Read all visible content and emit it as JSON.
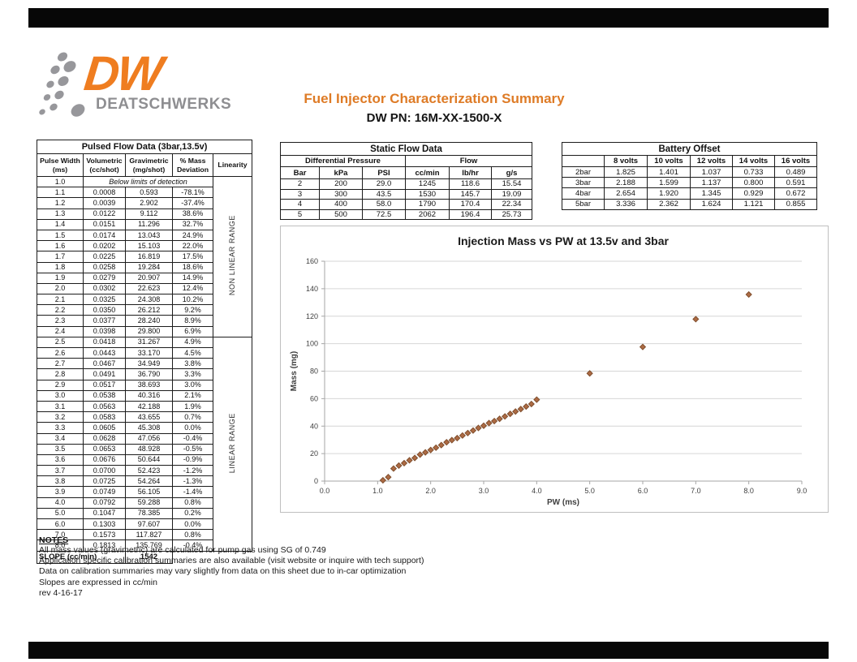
{
  "header": {
    "logo_dw": "DW",
    "logo_brand": "DEATSCHWERKS",
    "title": "Fuel Injector Characterization Summary",
    "subtitle": "DW PN: 16M-XX-1500-X"
  },
  "pulsed_flow": {
    "title": "Pulsed Flow Data (3bar,13.5v)",
    "columns": [
      [
        "Pulse Width",
        "(ms)"
      ],
      [
        "Volumetric",
        "(cc/shot)"
      ],
      [
        "Gravimetric",
        "(mg/shot)"
      ],
      [
        "% Mass",
        "Deviation"
      ]
    ],
    "linearity_header": "Linearity",
    "below_limits": {
      "pw": "1.0",
      "text": "Below limits of detection"
    },
    "non_linear_label": "NON LINEAR RANGE",
    "linear_label": "LINEAR RANGE",
    "linear_range_start": "2.5",
    "rows": [
      [
        "1.1",
        "0.0008",
        "0.593",
        "-78.1%"
      ],
      [
        "1.2",
        "0.0039",
        "2.902",
        "-37.4%"
      ],
      [
        "1.3",
        "0.0122",
        "9.112",
        "38.6%"
      ],
      [
        "1.4",
        "0.0151",
        "11.296",
        "32.7%"
      ],
      [
        "1.5",
        "0.0174",
        "13.043",
        "24.9%"
      ],
      [
        "1.6",
        "0.0202",
        "15.103",
        "22.0%"
      ],
      [
        "1.7",
        "0.0225",
        "16.819",
        "17.5%"
      ],
      [
        "1.8",
        "0.0258",
        "19.284",
        "18.6%"
      ],
      [
        "1.9",
        "0.0279",
        "20.907",
        "14.9%"
      ],
      [
        "2.0",
        "0.0302",
        "22.623",
        "12.4%"
      ],
      [
        "2.1",
        "0.0325",
        "24.308",
        "10.2%"
      ],
      [
        "2.2",
        "0.0350",
        "26.212",
        "9.2%"
      ],
      [
        "2.3",
        "0.0377",
        "28.240",
        "8.9%"
      ],
      [
        "2.4",
        "0.0398",
        "29.800",
        "6.9%"
      ],
      [
        "2.5",
        "0.0418",
        "31.267",
        "4.9%"
      ],
      [
        "2.6",
        "0.0443",
        "33.170",
        "4.5%"
      ],
      [
        "2.7",
        "0.0467",
        "34.949",
        "3.8%"
      ],
      [
        "2.8",
        "0.0491",
        "36.790",
        "3.3%"
      ],
      [
        "2.9",
        "0.0517",
        "38.693",
        "3.0%"
      ],
      [
        "3.0",
        "0.0538",
        "40.316",
        "2.1%"
      ],
      [
        "3.1",
        "0.0563",
        "42.188",
        "1.9%"
      ],
      [
        "3.2",
        "0.0583",
        "43.655",
        "0.7%"
      ],
      [
        "3.3",
        "0.0605",
        "45.308",
        "0.0%"
      ],
      [
        "3.4",
        "0.0628",
        "47.056",
        "-0.4%"
      ],
      [
        "3.5",
        "0.0653",
        "48.928",
        "-0.5%"
      ],
      [
        "3.6",
        "0.0676",
        "50.644",
        "-0.9%"
      ],
      [
        "3.7",
        "0.0700",
        "52.423",
        "-1.2%"
      ],
      [
        "3.8",
        "0.0725",
        "54.264",
        "-1.3%"
      ],
      [
        "3.9",
        "0.0749",
        "56.105",
        "-1.4%"
      ],
      [
        "4.0",
        "0.0792",
        "59.288",
        "0.8%"
      ],
      [
        "5.0",
        "0.1047",
        "78.385",
        "0.2%"
      ],
      [
        "6.0",
        "0.1303",
        "97.607",
        "0.0%"
      ],
      [
        "7.0",
        "0.1573",
        "117.827",
        "0.8%"
      ],
      [
        "8.0",
        "0.1813",
        "135.769",
        "-0.4%"
      ]
    ],
    "slope_label": "SLOPE (cc/min)",
    "slope_value": "1542"
  },
  "static_flow": {
    "title": "Static Flow Data",
    "group_headers": [
      "Differential Pressure",
      "Flow"
    ],
    "columns": [
      "Bar",
      "kPa",
      "PSI",
      "cc/min",
      "lb/hr",
      "g/s"
    ],
    "rows": [
      [
        "2",
        "200",
        "29.0",
        "1245",
        "118.6",
        "15.54"
      ],
      [
        "3",
        "300",
        "43.5",
        "1530",
        "145.7",
        "19.09"
      ],
      [
        "4",
        "400",
        "58.0",
        "1790",
        "170.4",
        "22.34"
      ],
      [
        "5",
        "500",
        "72.5",
        "2062",
        "196.4",
        "25.73"
      ]
    ]
  },
  "battery_offset": {
    "title": "Battery Offset",
    "columns": [
      "",
      "8 volts",
      "10 volts",
      "12 volts",
      "14 volts",
      "16 volts"
    ],
    "rows": [
      [
        "2bar",
        "1.825",
        "1.401",
        "1.037",
        "0.733",
        "0.489"
      ],
      [
        "3bar",
        "2.188",
        "1.599",
        "1.137",
        "0.800",
        "0.591"
      ],
      [
        "4bar",
        "2.654",
        "1.920",
        "1.345",
        "0.929",
        "0.672"
      ],
      [
        "5bar",
        "3.336",
        "2.362",
        "1.624",
        "1.121",
        "0.855"
      ]
    ]
  },
  "notes": {
    "title": "NOTES",
    "lines": [
      "All mass values (gravimetric) are calculated for pump gas using SG of 0.749",
      "Application specific calibration summaries are also available (visit website or inquire with tech support)",
      "Data on calibration summaries may vary slightly from data on this sheet due to in-car optimization",
      "Slopes are expressed in cc/min",
      "rev 4-16-17"
    ]
  },
  "chart_data": {
    "type": "scatter",
    "title": "Injection Mass vs PW at 13.5v and 3bar",
    "xlabel": "PW (ms)",
    "ylabel": "Mass (mg)",
    "xlim": [
      0,
      9
    ],
    "ylim": [
      0,
      160
    ],
    "xtick_step": 1,
    "ytick_step": 20,
    "grid": "horizontal",
    "legend": "none",
    "marker": "diamond",
    "points": [
      [
        1.1,
        0.593
      ],
      [
        1.2,
        2.902
      ],
      [
        1.3,
        9.112
      ],
      [
        1.4,
        11.296
      ],
      [
        1.5,
        13.043
      ],
      [
        1.6,
        15.103
      ],
      [
        1.7,
        16.819
      ],
      [
        1.8,
        19.284
      ],
      [
        1.9,
        20.907
      ],
      [
        2.0,
        22.623
      ],
      [
        2.1,
        24.308
      ],
      [
        2.2,
        26.212
      ],
      [
        2.3,
        28.24
      ],
      [
        2.4,
        29.8
      ],
      [
        2.5,
        31.267
      ],
      [
        2.6,
        33.17
      ],
      [
        2.7,
        34.949
      ],
      [
        2.8,
        36.79
      ],
      [
        2.9,
        38.693
      ],
      [
        3.0,
        40.316
      ],
      [
        3.1,
        42.188
      ],
      [
        3.2,
        43.655
      ],
      [
        3.3,
        45.308
      ],
      [
        3.4,
        47.056
      ],
      [
        3.5,
        48.928
      ],
      [
        3.6,
        50.644
      ],
      [
        3.7,
        52.423
      ],
      [
        3.8,
        54.264
      ],
      [
        3.9,
        56.105
      ],
      [
        4.0,
        59.288
      ],
      [
        5.0,
        78.385
      ],
      [
        6.0,
        97.607
      ],
      [
        7.0,
        117.827
      ],
      [
        8.0,
        135.769
      ]
    ]
  },
  "colors": {
    "accent_orange": "#de7b26",
    "logo_orange": "#ef7d20",
    "logo_gray": "#97979b",
    "marker_fill": "#ad6b44",
    "marker_stroke": "#7f4e2d",
    "gridline": "#d6d6d6",
    "axis_line": "#a6a6a6",
    "chart_border": "#bfbfbf",
    "tick_text": "#3f3f3f"
  }
}
